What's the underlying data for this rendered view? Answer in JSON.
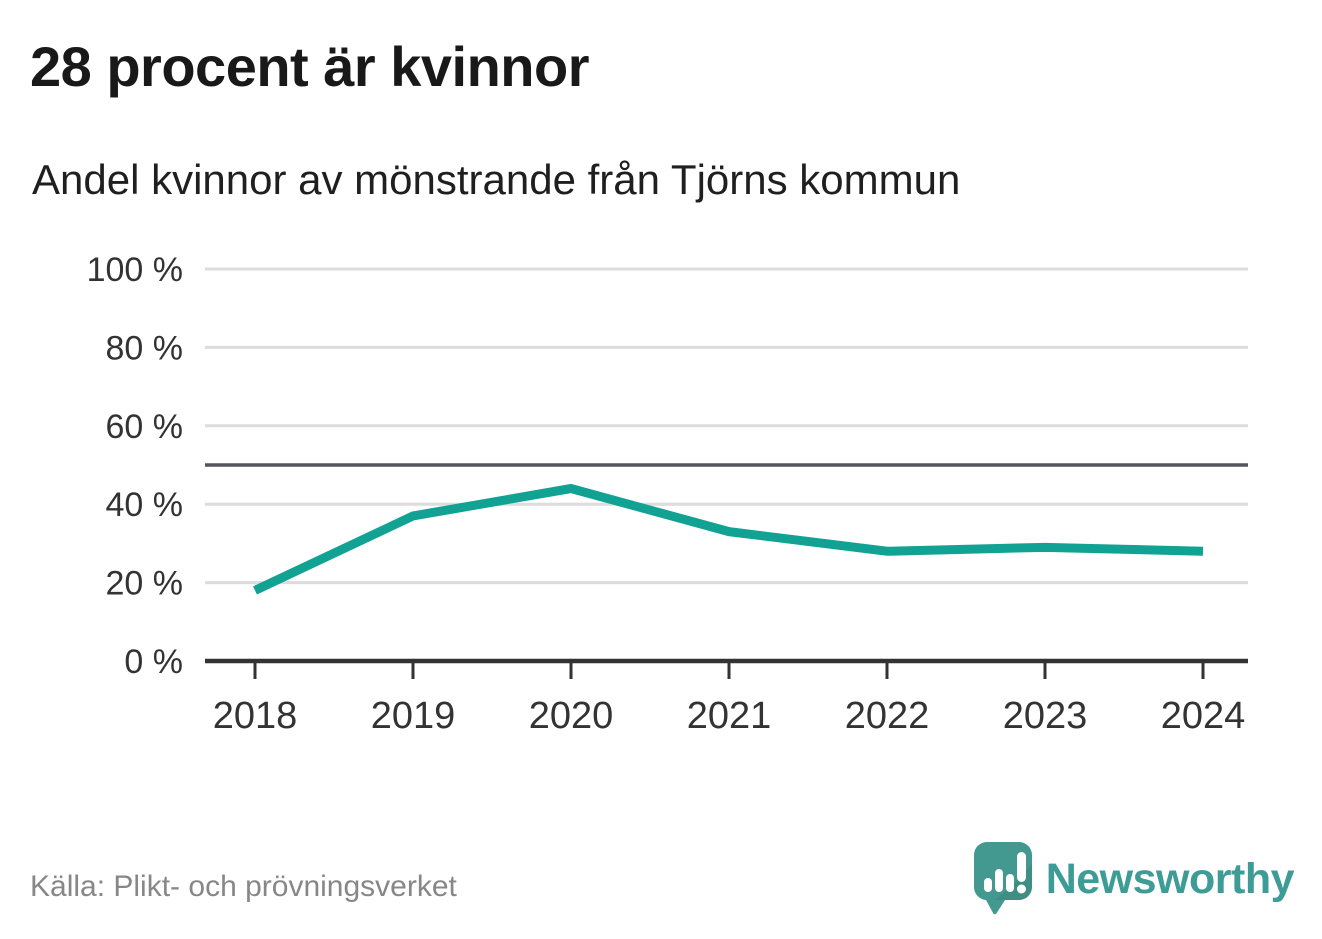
{
  "header": {
    "title": "28 procent är kvinnor",
    "subtitle": "Andel kvinnor av mönstrande från Tjörns kommun"
  },
  "chart_data": {
    "type": "line",
    "title": "28 procent är kvinnor",
    "subtitle": "Andel kvinnor av mönstrande från Tjörns kommun",
    "x": [
      "2018",
      "2019",
      "2020",
      "2021",
      "2022",
      "2023",
      "2024"
    ],
    "series": [
      {
        "name": "Andel kvinnor av mönstrande",
        "values": [
          18,
          37,
          44,
          33,
          28,
          29,
          28
        ]
      }
    ],
    "unit": "%",
    "ylim": [
      0,
      100
    ],
    "yticks": [
      0,
      20,
      40,
      60,
      80,
      100
    ],
    "ytick_suffix": " %",
    "reference_line": 50,
    "grid": "horizontal",
    "legend": "none",
    "line_color": "#11A294"
  },
  "footer": {
    "source": "Källa: Plikt- och prövningsverket",
    "brand": "Newsworthy"
  },
  "colors": {
    "accent_teal": "#11A294",
    "brand_teal": "#3D9D96",
    "logo_bubble": "#43998F",
    "grid": "#DCDCDC",
    "reference": "#55565B",
    "axis": "#333333",
    "tick_text": "#333333",
    "title_text": "#191919",
    "muted_text": "#878787"
  }
}
